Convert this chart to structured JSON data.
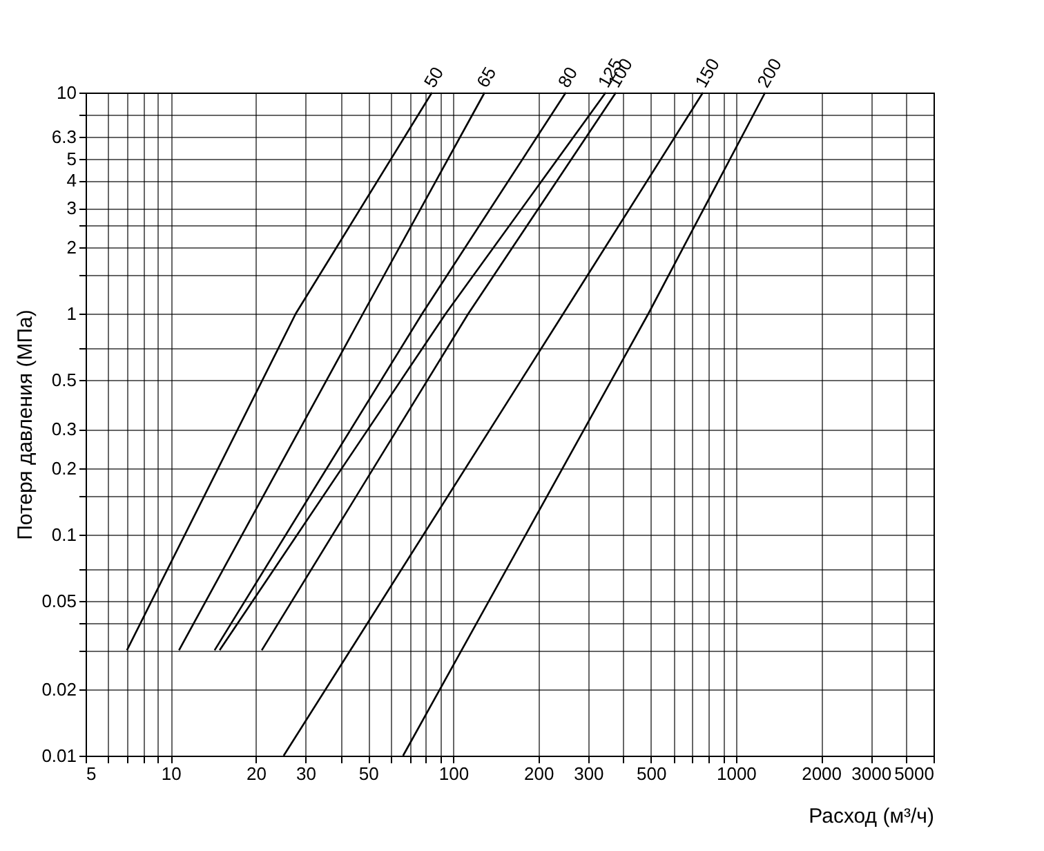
{
  "chart_data": {
    "type": "line",
    "xlabel": "Расход (м³/ч)",
    "ylabel": "Потеря давления (МПа)",
    "log": "xy",
    "grid": true,
    "legend": false,
    "xlim": [
      5,
      5000
    ],
    "ylim": [
      0.01,
      10
    ],
    "xticks": [
      5,
      {
        "value": 6,
        "label": null
      },
      {
        "value": 7,
        "label": null
      },
      {
        "value": 8,
        "label": null
      },
      {
        "value": 9,
        "label": null
      },
      10,
      20,
      30,
      {
        "value": 40,
        "label": null
      },
      50,
      {
        "value": 60,
        "label": null
      },
      {
        "value": 70,
        "label": null
      },
      {
        "value": 80,
        "label": null
      },
      {
        "value": 90,
        "label": null
      },
      100,
      200,
      300,
      {
        "value": 400,
        "label": null
      },
      500,
      {
        "value": 600,
        "label": null
      },
      {
        "value": 700,
        "label": null
      },
      {
        "value": 800,
        "label": null
      },
      {
        "value": 900,
        "label": null
      },
      1000,
      2000,
      3000,
      {
        "value": 4000,
        "label": null
      },
      5000
    ],
    "yticks": [
      0.01,
      0.02,
      {
        "value": 0.03,
        "label": null
      },
      {
        "value": 0.04,
        "label": null
      },
      0.05,
      {
        "value": 0.07,
        "label": null
      },
      0.1,
      {
        "value": 0.15,
        "label": null
      },
      0.2,
      0.3,
      0.5,
      {
        "value": 0.7,
        "label": null
      },
      1,
      {
        "value": 1.5,
        "label": null
      },
      2,
      {
        "value": 2.5,
        "label": null
      },
      3,
      4,
      5,
      6.3,
      {
        "value": 8,
        "label": null
      },
      10
    ],
    "series": [
      {
        "name": "50",
        "color": "#000000",
        "x": [
          7.0,
          27.7,
          84
        ],
        "values": [
          0.03,
          1,
          10
        ]
      },
      {
        "name": "65",
        "color": "#000000",
        "x": [
          10.7,
          47.9,
          129
        ],
        "values": [
          0.03,
          1,
          10
        ]
      },
      {
        "name": "80",
        "color": "#000000",
        "x": [
          14.3,
          77.6,
          250
        ],
        "values": [
          0.03,
          1,
          10
        ]
      },
      {
        "name": "125",
        "color": "#000000",
        "x": [
          14.9,
          94,
          346
        ],
        "values": [
          0.03,
          1,
          10
        ]
      },
      {
        "name": "100",
        "color": "#000000",
        "x": [
          21,
          113,
          376
        ],
        "values": [
          0.03,
          1,
          10
        ]
      },
      {
        "name": "150",
        "color": "#000000",
        "x": [
          25.1,
          245,
          764
        ],
        "values": [
          0.01,
          1,
          10
        ]
      },
      {
        "name": "200",
        "color": "#000000",
        "x": [
          66.4,
          490,
          1268
        ],
        "values": [
          0.01,
          1,
          10
        ]
      }
    ]
  }
}
